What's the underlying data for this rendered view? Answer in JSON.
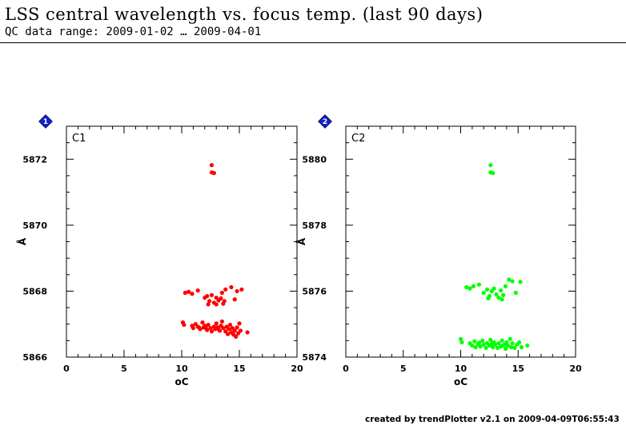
{
  "header": {
    "title": "LSS central wavelength vs. focus temp. (last 90 days)",
    "subtitle": "QC data range: 2009-01-02 … 2009-04-01"
  },
  "footer": {
    "text": "created by trendPlotter v2.1 on 2009-04-09T06:55:43"
  },
  "colors": {
    "badge": "#1020d0"
  },
  "chart_data": [
    {
      "type": "scatter",
      "panel_label": "C1",
      "badge": "1",
      "color": "#ff0000",
      "xlabel": "oC",
      "ylabel": "Å",
      "xlim": [
        0,
        20
      ],
      "ylim": [
        5866,
        5873
      ],
      "xticks": [
        0,
        5,
        10,
        15,
        20
      ],
      "yticks": [
        5866,
        5868,
        5870,
        5872
      ],
      "points": [
        [
          12.6,
          5871.82
        ],
        [
          12.6,
          5871.6
        ],
        [
          12.8,
          5871.58
        ],
        [
          10.3,
          5867.95
        ],
        [
          10.6,
          5867.98
        ],
        [
          10.9,
          5867.92
        ],
        [
          11.4,
          5868.02
        ],
        [
          12.0,
          5867.8
        ],
        [
          12.2,
          5867.85
        ],
        [
          12.4,
          5867.7
        ],
        [
          12.6,
          5867.88
        ],
        [
          12.8,
          5867.65
        ],
        [
          13.0,
          5867.8
        ],
        [
          13.2,
          5867.72
        ],
        [
          13.4,
          5867.78
        ],
        [
          13.6,
          5867.62
        ],
        [
          13.5,
          5867.95
        ],
        [
          13.8,
          5868.05
        ],
        [
          14.3,
          5868.12
        ],
        [
          14.6,
          5867.75
        ],
        [
          14.8,
          5868.0
        ],
        [
          15.2,
          5868.05
        ],
        [
          12.3,
          5867.6
        ],
        [
          13.0,
          5867.6
        ],
        [
          13.7,
          5867.7
        ],
        [
          10.1,
          5867.05
        ],
        [
          10.2,
          5866.98
        ],
        [
          10.9,
          5866.95
        ],
        [
          11.0,
          5866.88
        ],
        [
          11.2,
          5867.0
        ],
        [
          11.4,
          5866.92
        ],
        [
          11.6,
          5866.85
        ],
        [
          11.8,
          5867.05
        ],
        [
          11.9,
          5866.9
        ],
        [
          12.0,
          5866.95
        ],
        [
          12.2,
          5866.82
        ],
        [
          12.3,
          5866.98
        ],
        [
          12.5,
          5866.88
        ],
        [
          12.6,
          5866.78
        ],
        [
          12.8,
          5866.92
        ],
        [
          12.9,
          5866.85
        ],
        [
          13.0,
          5867.02
        ],
        [
          13.1,
          5866.9
        ],
        [
          13.3,
          5866.8
        ],
        [
          13.4,
          5866.95
        ],
        [
          13.5,
          5867.08
        ],
        [
          13.6,
          5866.88
        ],
        [
          13.8,
          5866.78
        ],
        [
          13.9,
          5866.92
        ],
        [
          14.0,
          5866.7
        ],
        [
          14.1,
          5866.85
        ],
        [
          14.2,
          5866.98
        ],
        [
          14.3,
          5866.75
        ],
        [
          14.4,
          5866.88
        ],
        [
          14.5,
          5866.68
        ],
        [
          14.6,
          5866.8
        ],
        [
          14.7,
          5866.62
        ],
        [
          14.8,
          5866.9
        ],
        [
          14.9,
          5866.72
        ],
        [
          15.0,
          5867.02
        ],
        [
          15.1,
          5866.8
        ],
        [
          15.7,
          5866.75
        ],
        [
          11.5,
          5866.9
        ],
        [
          12.1,
          5866.88
        ],
        [
          13.2,
          5866.84
        ]
      ]
    },
    {
      "type": "scatter",
      "panel_label": "C2",
      "badge": "2",
      "color": "#00ff00",
      "xlabel": "oC",
      "ylabel": "Å",
      "xlim": [
        0,
        20
      ],
      "ylim": [
        5874,
        5881
      ],
      "xticks": [
        0,
        5,
        10,
        15,
        20
      ],
      "yticks": [
        5874,
        5876,
        5878,
        5880
      ],
      "points": [
        [
          12.6,
          5879.82
        ],
        [
          12.6,
          5879.6
        ],
        [
          12.8,
          5879.58
        ],
        [
          10.5,
          5876.12
        ],
        [
          10.8,
          5876.08
        ],
        [
          11.1,
          5876.15
        ],
        [
          11.6,
          5876.2
        ],
        [
          12.0,
          5875.95
        ],
        [
          12.3,
          5876.05
        ],
        [
          12.5,
          5875.85
        ],
        [
          12.7,
          5876.0
        ],
        [
          12.9,
          5876.08
        ],
        [
          13.1,
          5875.9
        ],
        [
          13.3,
          5875.8
        ],
        [
          13.5,
          5876.02
        ],
        [
          13.7,
          5875.88
        ],
        [
          13.9,
          5876.15
        ],
        [
          14.2,
          5876.35
        ],
        [
          14.5,
          5876.3
        ],
        [
          14.8,
          5875.95
        ],
        [
          15.2,
          5876.28
        ],
        [
          12.4,
          5875.78
        ],
        [
          13.6,
          5875.75
        ],
        [
          10.0,
          5874.55
        ],
        [
          10.1,
          5874.45
        ],
        [
          10.8,
          5874.42
        ],
        [
          11.0,
          5874.35
        ],
        [
          11.2,
          5874.48
        ],
        [
          11.3,
          5874.3
        ],
        [
          11.5,
          5874.4
        ],
        [
          11.7,
          5874.32
        ],
        [
          11.9,
          5874.5
        ],
        [
          12.0,
          5874.38
        ],
        [
          12.2,
          5874.28
        ],
        [
          12.3,
          5874.42
        ],
        [
          12.5,
          5874.35
        ],
        [
          12.6,
          5874.52
        ],
        [
          12.8,
          5874.3
        ],
        [
          12.9,
          5874.45
        ],
        [
          13.0,
          5874.38
        ],
        [
          13.2,
          5874.28
        ],
        [
          13.3,
          5874.42
        ],
        [
          13.5,
          5874.32
        ],
        [
          13.6,
          5874.5
        ],
        [
          13.8,
          5874.38
        ],
        [
          13.9,
          5874.25
        ],
        [
          14.0,
          5874.45
        ],
        [
          14.1,
          5874.35
        ],
        [
          14.3,
          5874.55
        ],
        [
          14.4,
          5874.3
        ],
        [
          14.5,
          5874.42
        ],
        [
          14.7,
          5874.28
        ],
        [
          14.9,
          5874.38
        ],
        [
          15.1,
          5874.45
        ],
        [
          15.3,
          5874.3
        ],
        [
          15.8,
          5874.35
        ],
        [
          11.6,
          5874.44
        ],
        [
          12.7,
          5874.4
        ],
        [
          13.7,
          5874.36
        ]
      ]
    }
  ]
}
